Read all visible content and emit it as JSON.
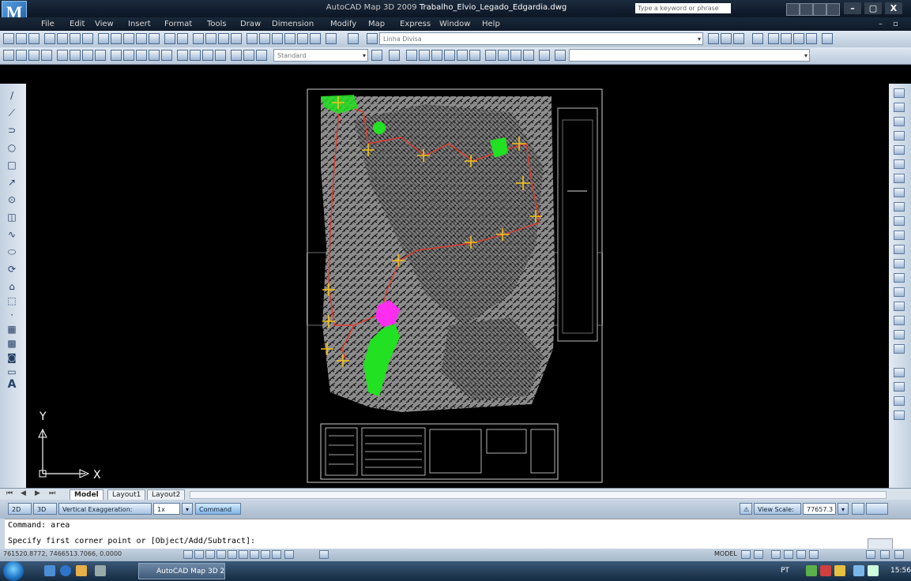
{
  "window": {
    "title_prefix": "AutoCAD Map 3D 2009 ",
    "title_file": "Trabalho_Elvio_Legado_Edgardia.dwg",
    "search_placeholder": "Type a keyword or phrase",
    "min": "–",
    "max": "▢",
    "close": "X"
  },
  "menu": [
    "File",
    "Edit",
    "View",
    "Insert",
    "Format",
    "Tools",
    "Draw",
    "Dimension",
    "Modify",
    "Map",
    "Express",
    "Window",
    "Help"
  ],
  "toolbars": {
    "layer_combo": "Linha Divisa",
    "style_combo": "Standard",
    "textstyle_combo": ""
  },
  "left_palette_tools": [
    "/",
    "⟋",
    "⊃",
    "○",
    "□",
    "↗",
    "⊙",
    "◫",
    "∿",
    "⬭",
    "⟳",
    "⌂",
    "⬚",
    "·",
    "▦",
    "▩",
    "◙",
    "▭",
    "A"
  ],
  "ucs": {
    "x_label": "X",
    "y_label": "Y"
  },
  "tabs": {
    "model": "Model",
    "layout1": "Layout1",
    "layout2": "Layout2"
  },
  "status": {
    "btn_2d": "2D",
    "btn_3d": "3D",
    "vertical_exag": "Vertical Exaggeration:",
    "exag_value": "1x",
    "command": "Command",
    "view_scale_label": "View Scale: 1:",
    "view_scale_value": "77657.3"
  },
  "command_line": {
    "line1": "Command: area",
    "line2": "Specify first corner point or [Object/Add/Subtract]:"
  },
  "coords": "761520.8772, 7466513.7066, 0.0000",
  "model_label": "MODEL",
  "taskbar": {
    "autocad_task": "AutoCAD Map 3D 2...",
    "lang": "PT",
    "clock": "15:56"
  },
  "colors": {
    "map_gray": "#8c8c8c",
    "route": "#e0392b",
    "markers": "#f3c21b",
    "green_area": "#22e022",
    "magenta_area": "#ff2df0"
  }
}
